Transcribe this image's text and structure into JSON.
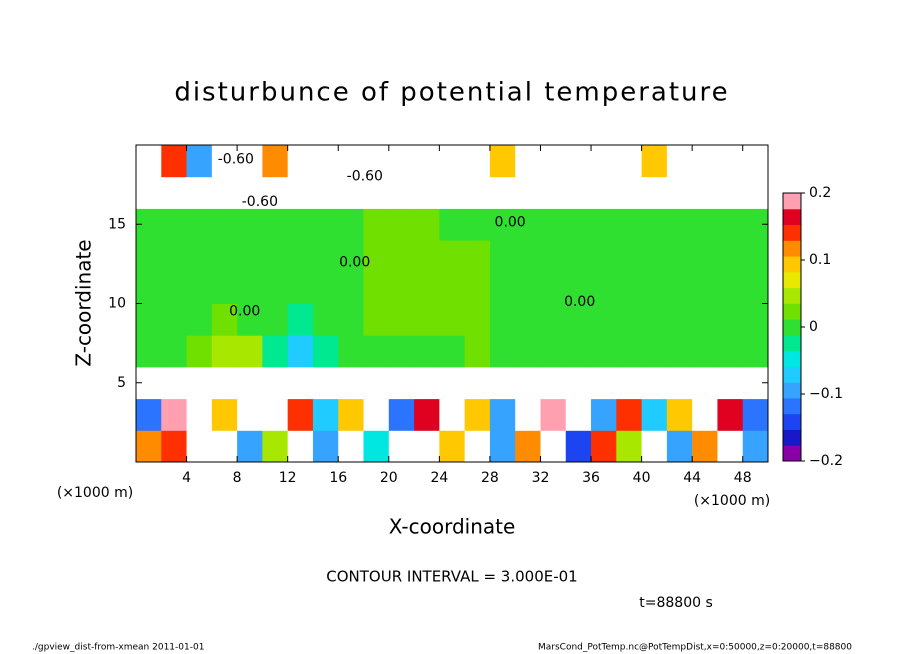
{
  "chart_data": {
    "type": "heatmap",
    "title": "disturbunce of potential temperature",
    "x_label": "X-coordinate",
    "y_label": "Z-coordinate",
    "x_unit": "(×1000 m)",
    "y_unit": "(×1000 m)",
    "xlim": [
      0,
      50
    ],
    "ylim": [
      0,
      20
    ],
    "xticks": [
      4,
      8,
      12,
      16,
      20,
      24,
      28,
      32,
      36,
      40,
      44,
      48
    ],
    "yticks": [
      5,
      10,
      15
    ],
    "clim": [
      -0.2,
      0.2
    ],
    "cticks": [
      {
        "value": -0.2,
        "label": "−0.2"
      },
      {
        "value": -0.1,
        "label": "−0.1"
      },
      0,
      0.1,
      0.2
    ],
    "colors": [
      "#8a00a8",
      "#1818c8",
      "#1c44f0",
      "#2a74ff",
      "#36a4ff",
      "#20ccff",
      "#00e6e0",
      "#00e890",
      "#30e030",
      "#70e000",
      "#a8e800",
      "#e8e800",
      "#ffc800",
      "#ff8c00",
      "#ff3000",
      "#e00020",
      "#ffa0b0"
    ],
    "z": [
      [
        0.12,
        0.15,
        -0.5,
        -0.4,
        -0.1,
        0.05,
        -0.3,
        -0.1,
        -0.5,
        -0.05,
        -0.4,
        -0.3,
        0.1,
        -0.3,
        -0.1,
        0.12,
        -0.5,
        -0.15,
        0.15,
        0.05,
        -0.4,
        -0.1,
        0.12,
        -0.4,
        -0.1
      ],
      [
        -0.12,
        0.18,
        -0.3,
        0.1,
        -0.4,
        -0.3,
        0.15,
        -0.08,
        0.1,
        -0.3,
        -0.12,
        0.17,
        -0.4,
        0.1,
        -0.1,
        -0.3,
        0.18,
        -0.3,
        -0.1,
        0.15,
        -0.08,
        0.1,
        -0.3,
        0.16,
        -0.12
      ],
      [
        -0.4,
        -0.5,
        -0.3,
        -0.4,
        -0.6,
        -0.5,
        -0.4,
        -0.5,
        -0.3,
        -0.4,
        -0.5,
        -0.6,
        -0.4,
        -0.5,
        -0.3,
        -0.4,
        -0.5,
        -0.6,
        -0.4,
        -0.5,
        -0.3,
        -0.4,
        -0.5,
        -0.4,
        -0.3
      ],
      [
        0.005,
        0.01,
        0.02,
        0.04,
        0.05,
        -0.03,
        -0.06,
        -0.02,
        0.01,
        0.005,
        0.01,
        0,
        0.01,
        0.02,
        0,
        0.01,
        0.005,
        0.01,
        0,
        0.01,
        0.005,
        0.01,
        -0.01,
        0,
        0.005
      ],
      [
        0.01,
        0.005,
        0.01,
        0.02,
        0.01,
        0.005,
        -0.02,
        0.01,
        0.005,
        0.015,
        0.02,
        0.02,
        0.02,
        0.015,
        0.01,
        0.005,
        0.01,
        0.005,
        0.01,
        0.005,
        0.01,
        0.005,
        0.01,
        0.005,
        0.01
      ],
      [
        0.005,
        0.01,
        0.005,
        0.01,
        0.005,
        0.005,
        0,
        0.005,
        0.01,
        0.03,
        0.03,
        0.03,
        0.02,
        0.02,
        0.01,
        0.005,
        0.01,
        0.005,
        0.01,
        0.005,
        0.01,
        0.005,
        0.01,
        0.005,
        0.01
      ],
      [
        0.01,
        0.005,
        0.01,
        0.005,
        0.01,
        0.005,
        0.01,
        0.005,
        0.01,
        0.03,
        0.03,
        0.02,
        0.02,
        0.02,
        0.01,
        0.005,
        0.01,
        0.005,
        0.01,
        0.005,
        0.01,
        0.005,
        0.01,
        0.005,
        0.01
      ],
      [
        0.005,
        0.01,
        0.005,
        0.01,
        0.005,
        0.01,
        0.005,
        0.01,
        0.005,
        0.02,
        0.02,
        0.02,
        0.01,
        0.01,
        0.01,
        0.01,
        0.005,
        0.01,
        0.005,
        0.01,
        0.005,
        0.01,
        0.005,
        0.01,
        0.005
      ],
      [
        -0.6,
        -0.7,
        -0.6,
        -0.5,
        -0.6,
        -0.7,
        -0.6,
        -0.5,
        -0.6,
        -0.7,
        -0.6,
        -0.5,
        -0.6,
        -0.7,
        -0.6,
        -0.5,
        -0.6,
        -0.7,
        -0.6,
        -0.5,
        -0.6,
        -0.7,
        -0.6,
        -0.5,
        -0.6
      ],
      [
        -0.3,
        0.15,
        -0.1,
        -0.4,
        -0.5,
        0.12,
        -0.3,
        -0.6,
        -0.5,
        -0.4,
        -0.3,
        -0.5,
        -0.6,
        -0.4,
        0.1,
        -0.5,
        -0.3,
        -0.6,
        -0.4,
        -0.5,
        0.1,
        -0.3,
        -0.5,
        -0.4,
        -0.3
      ]
    ],
    "contour_labels": [
      {
        "text": "-0.60",
        "x": 7.9,
        "z": 19.1
      },
      {
        "text": "-0.60",
        "x": 9.8,
        "z": 16.4
      },
      {
        "text": "-0.60",
        "x": 18.1,
        "z": 18.0
      },
      {
        "text": "0.00",
        "x": 8.6,
        "z": 9.5
      },
      {
        "text": "0.00",
        "x": 17.3,
        "z": 12.6
      },
      {
        "text": "0.00",
        "x": 29.6,
        "z": 15.1
      },
      {
        "text": "0.00",
        "x": 35.1,
        "z": 10.1
      }
    ],
    "contour_interval": "CONTOUR INTERVAL = 3.000E-01",
    "time": "t=88800 s",
    "footer_left": "./gpview_dist-from-xmean   2011-01-01",
    "footer_right": "MarsCond_PotTemp.nc@PotTempDist,x=0:50000,z=0:20000,t=88800"
  }
}
